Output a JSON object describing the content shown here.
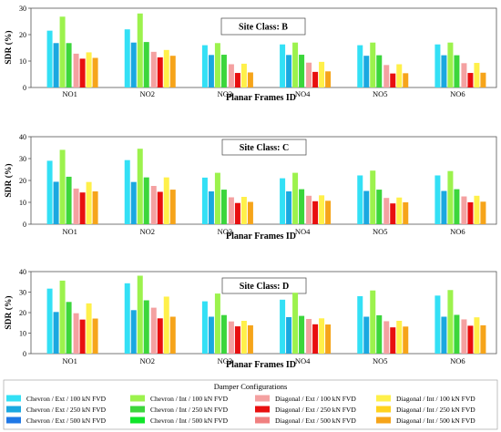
{
  "colors": {
    "Chevron / Ext / 100 kN FVD": "#33e0f5",
    "Chevron / Ext / 250 kN FVD": "#1aa8e0",
    "Chevron / Ext / 500 kN FVD": "#1f78e6",
    "Chevron / Int / 100 kN FVD": "#9cf24d",
    "Chevron / Int / 250 kN FVD": "#3cd63c",
    "Chevron / Int / 500 kN FVD": "#10e52a",
    "Diagonal / Ext / 100 kN FVD": "#f4a1a1",
    "Diagonal / Ext / 250 kN FVD": "#e80f0f",
    "Diagonal / Ext / 500 kN FVD": "#f08080",
    "Diagonal / Int / 100 kN FVD": "#fff04a",
    "Diagonal / Int / 250 kN FVD": "#ffd21e",
    "Diagonal / Int / 500 kN FVD": "#f6a41a"
  },
  "legend": {
    "title": "Damper Configurations",
    "columns": [
      [
        "Chevron / Ext / 100 kN FVD",
        "Chevron / Ext / 250 kN FVD",
        "Chevron / Ext / 500 kN FVD"
      ],
      [
        "Chevron / Int / 100 kN FVD",
        "Chevron / Int / 250 kN FVD",
        "Chevron / Int / 500 kN FVD"
      ],
      [
        "Diagonal / Ext / 100 kN FVD",
        "Diagonal / Ext / 250 kN FVD",
        "Diagonal / Ext / 500 kN FVD"
      ],
      [
        "Diagonal / Int / 100 kN FVD",
        "Diagonal / Int / 250 kN FVD",
        "Diagonal / Int / 500 kN FVD"
      ]
    ]
  },
  "chart_data": [
    {
      "type": "bar",
      "title": "Site Class: B",
      "xlabel": "Planar Frames ID",
      "ylabel": "SDR (%)",
      "ylim": [
        0,
        30
      ],
      "yticks": [
        0,
        10,
        20,
        30
      ],
      "categories": [
        "NO1",
        "NO2",
        "NO3",
        "NO4",
        "NO5",
        "NO6"
      ],
      "series": [
        {
          "name": "Chevron / Ext / 100 kN FVD",
          "values": [
            21.5,
            22,
            16,
            16.3,
            16,
            16.3
          ]
        },
        {
          "name": "Chevron / Ext / 250 kN FVD",
          "values": [
            16.8,
            17,
            12.3,
            12.3,
            12,
            12.2
          ]
        },
        {
          "name": "Chevron / Int / 100 kN FVD",
          "values": [
            26.8,
            28,
            16.8,
            17,
            17,
            17
          ]
        },
        {
          "name": "Chevron / Int / 250 kN FVD",
          "values": [
            16.8,
            17.2,
            12.4,
            12.4,
            12.2,
            12.2
          ]
        },
        {
          "name": "Diagonal / Ext / 100 kN FVD",
          "values": [
            12.8,
            13.5,
            8.8,
            9.4,
            8.5,
            9.2
          ]
        },
        {
          "name": "Diagonal / Ext / 250 kN FVD",
          "values": [
            10.9,
            11.4,
            5.5,
            5.9,
            5.3,
            5.5
          ]
        },
        {
          "name": "Diagonal / Int / 100 kN FVD",
          "values": [
            13.3,
            14.2,
            9,
            9.7,
            8.8,
            9.3
          ]
        },
        {
          "name": "Diagonal / Int / 500 kN FVD",
          "values": [
            11.2,
            12,
            5.7,
            6.1,
            5.4,
            5.6
          ]
        }
      ]
    },
    {
      "type": "bar",
      "title": "Site Class: C",
      "xlabel": "Planar Frames ID",
      "ylabel": "SDR (%)",
      "ylim": [
        0,
        40
      ],
      "yticks": [
        0,
        10,
        20,
        30,
        40
      ],
      "categories": [
        "NO1",
        "NO2",
        "NO3",
        "NO4",
        "NO5",
        "NO6"
      ],
      "series": [
        {
          "name": "Chevron / Ext / 100 kN FVD",
          "values": [
            29,
            29.3,
            21.3,
            21,
            22.3,
            22.3
          ]
        },
        {
          "name": "Chevron / Ext / 250 kN FVD",
          "values": [
            19.4,
            19.3,
            15,
            15,
            15.2,
            15.2
          ]
        },
        {
          "name": "Chevron / Int / 100 kN FVD",
          "values": [
            34,
            34.5,
            23.5,
            23.5,
            24.5,
            24.3
          ]
        },
        {
          "name": "Chevron / Int / 250 kN FVD",
          "values": [
            21.7,
            21.4,
            15.8,
            16,
            15.8,
            16
          ]
        },
        {
          "name": "Diagonal / Ext / 100 kN FVD",
          "values": [
            16.3,
            17.5,
            12.3,
            13,
            12,
            12.7
          ]
        },
        {
          "name": "Diagonal / Ext / 250 kN FVD",
          "values": [
            14.5,
            14.8,
            9.7,
            10.5,
            9.5,
            10
          ]
        },
        {
          "name": "Diagonal / Int / 100 kN FVD",
          "values": [
            19.3,
            21.4,
            12.5,
            13.2,
            12.2,
            13
          ]
        },
        {
          "name": "Diagonal / Int / 500 kN FVD",
          "values": [
            15,
            15.8,
            10.2,
            10.7,
            10,
            10.3
          ]
        }
      ]
    },
    {
      "type": "bar",
      "title": "Site Class: D",
      "xlabel": "Planar Frames ID",
      "ylabel": "SDR (%)",
      "ylim": [
        0,
        40
      ],
      "yticks": [
        0,
        10,
        20,
        30,
        40
      ],
      "categories": [
        "NO1",
        "NO2",
        "NO3",
        "NO4",
        "NO5",
        "NO6"
      ],
      "series": [
        {
          "name": "Chevron / Ext / 100 kN FVD",
          "values": [
            31.7,
            34.3,
            25.5,
            26.3,
            28,
            28.3
          ]
        },
        {
          "name": "Chevron / Ext / 250 kN FVD",
          "values": [
            20.3,
            21.2,
            18,
            17.8,
            18,
            18
          ]
        },
        {
          "name": "Chevron / Int / 100 kN FVD",
          "values": [
            35.6,
            38,
            29.3,
            29.7,
            30.8,
            31
          ]
        },
        {
          "name": "Chevron / Int / 250 kN FVD",
          "values": [
            25.2,
            26,
            18.8,
            18.4,
            18.7,
            18.9
          ]
        },
        {
          "name": "Diagonal / Ext / 100 kN FVD",
          "values": [
            19.7,
            22.4,
            15.7,
            16.9,
            15.8,
            16.7
          ]
        },
        {
          "name": "Diagonal / Ext / 250 kN FVD",
          "values": [
            16.6,
            17.2,
            13.3,
            14.3,
            12.8,
            13.6
          ]
        },
        {
          "name": "Diagonal / Int / 100 kN FVD",
          "values": [
            24.5,
            27.8,
            16,
            17.2,
            16,
            17.7
          ]
        },
        {
          "name": "Diagonal / Int / 500 kN FVD",
          "values": [
            17.1,
            18,
            13.8,
            14.2,
            13.2,
            13.8
          ]
        }
      ]
    }
  ]
}
